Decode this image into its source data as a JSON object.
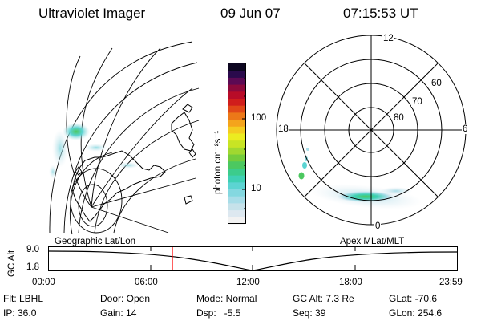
{
  "header": {
    "title": "Ultraviolet Imager",
    "date": "09 Jun 07",
    "time": "07:15:53 UT"
  },
  "geo_panel": {
    "label": "Geographic Lat/Lon"
  },
  "apex_panel": {
    "label": "Apex MLat/MLT",
    "mlt_labels": {
      "top": "12",
      "left": "18",
      "right": "6",
      "bottom": "0"
    },
    "lat_labels": [
      "60",
      "70",
      "80"
    ]
  },
  "colorbar": {
    "unit_label": "photon cm⁻²s⁻¹",
    "tick_labels": [
      "100",
      "10"
    ],
    "colors": [
      "#f2f2f2",
      "#dde8f0",
      "#c6e2ea",
      "#a8dde8",
      "#84d8e0",
      "#5cd4d2",
      "#3fd0b4",
      "#3ccc8c",
      "#4cc860",
      "#74cc3c",
      "#a0d830",
      "#c8e424",
      "#ecec20",
      "#f4cc20",
      "#f4a41c",
      "#ec7818",
      "#e04818",
      "#d01e1c",
      "#b80c28",
      "#8c0a3c",
      "#5c0a54",
      "#2a0a4c",
      "#0c0620"
    ]
  },
  "timeline": {
    "axis_label": "GC Alt",
    "y_labels": [
      "9.0",
      "1.8"
    ],
    "x_labels": [
      "00:00",
      "06:00",
      "12:00",
      "18:00",
      "23:59"
    ],
    "current_time_hours": 7.26
  },
  "info": {
    "filter": "Flt: LBHL",
    "ip": "IP: 36.0",
    "door": "Door: Open",
    "gain": "Gain: 14",
    "mode": "Mode: Normal",
    "dsp": "Dsp:   -5.5",
    "gc_alt": "GC Alt: 7.3 Re",
    "seq": "Seq: 39",
    "glat": "GLat: -70.6",
    "glon": "GLon: 254.6"
  },
  "colors": {
    "foreground": "#000000",
    "time_marker": "#ff0000"
  }
}
